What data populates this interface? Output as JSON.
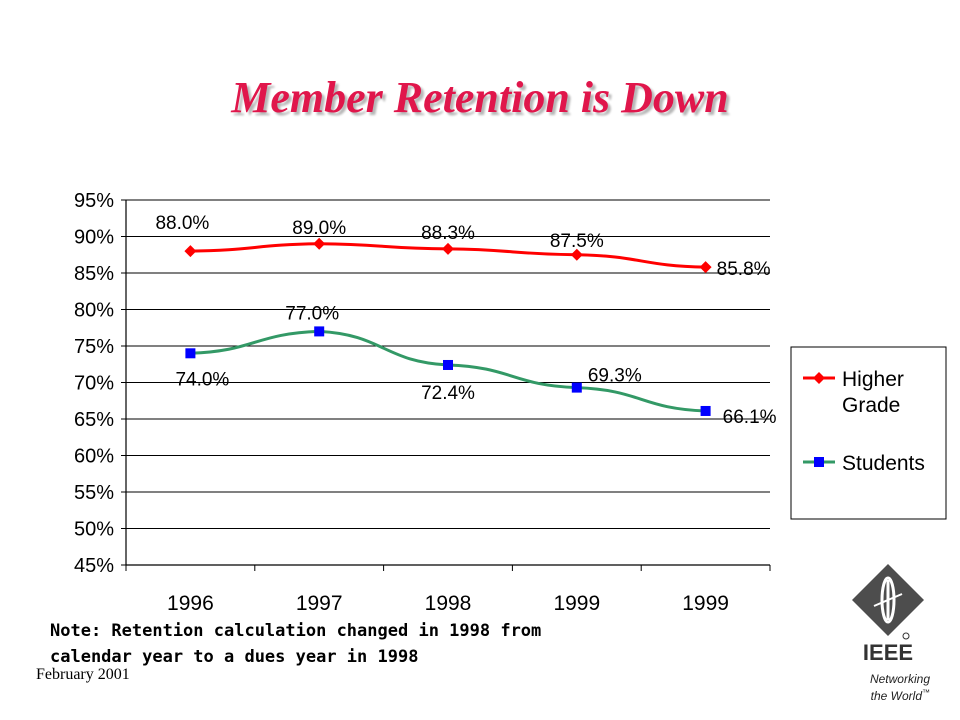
{
  "slide": {
    "title": "Member Retention is Down",
    "note_line1": "Note: Retention calculation changed in 1998 from",
    "note_line2": "calendar year to a dues year in 1998",
    "date": "February 2001",
    "logo_text": "IEEE",
    "tagline_line1": "Networking",
    "tagline_line2": "the World",
    "tagline_mark": "™"
  },
  "colors": {
    "title": "#e0164b",
    "higher_grade": "#ff0000",
    "higher_grade_marker": "#ff0000",
    "students": "#339966",
    "students_marker": "#0000ff",
    "grid": "#000000"
  },
  "chart_data": {
    "type": "line",
    "categories": [
      "1996",
      "1997",
      "1998",
      "1999",
      "1999"
    ],
    "series": [
      {
        "name": "Higher Grade",
        "legend_lines": [
          "Higher",
          "Grade"
        ],
        "values": [
          88.0,
          89.0,
          88.3,
          87.5,
          85.8
        ],
        "labels": [
          "88.0%",
          "89.0%",
          "88.3%",
          "87.5%",
          "85.8%"
        ],
        "marker": "diamond"
      },
      {
        "name": "Students",
        "legend_lines": [
          "Students"
        ],
        "values": [
          74.0,
          77.0,
          72.4,
          69.3,
          66.1
        ],
        "labels": [
          "74.0%",
          "77.0%",
          "72.4%",
          "69.3%",
          "66.1%"
        ],
        "marker": "square"
      }
    ],
    "ylim": [
      45,
      95
    ],
    "y_ticks": [
      "45%",
      "50%",
      "55%",
      "60%",
      "65%",
      "70%",
      "75%",
      "80%",
      "85%",
      "90%",
      "95%"
    ],
    "grid": "horizontal",
    "legend": "right",
    "xlabel": "",
    "ylabel": ""
  }
}
